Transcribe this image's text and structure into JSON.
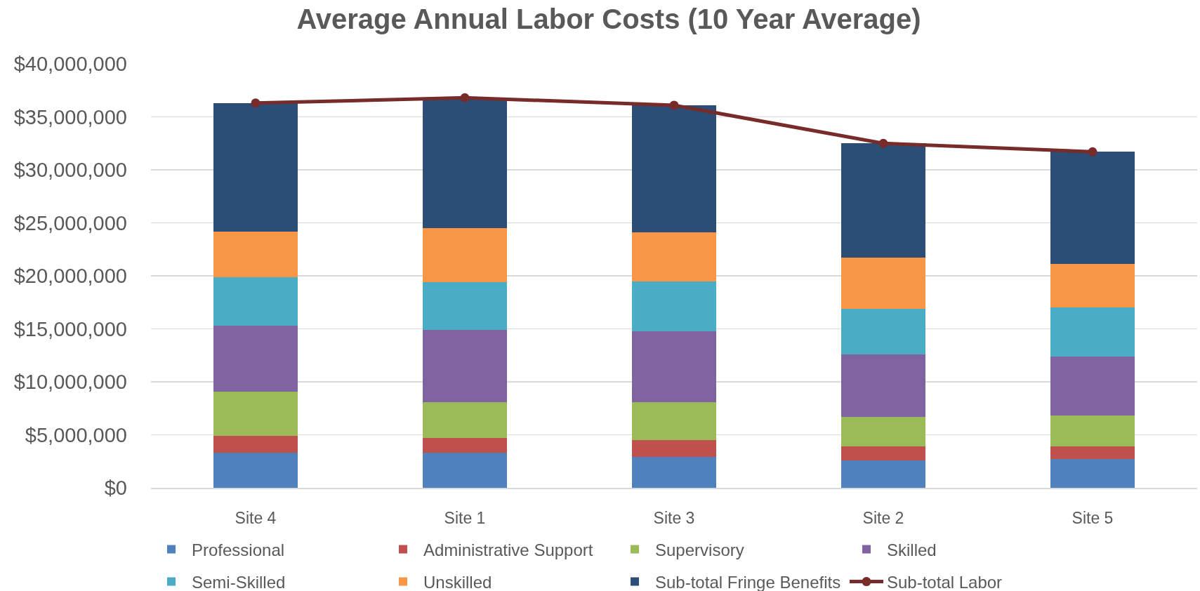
{
  "chart_data": {
    "type": "bar",
    "title": "Average Annual Labor Costs (10 Year Average)",
    "categories": [
      "Site 4",
      "Site 1",
      "Site 3",
      "Site 2",
      "Site 5"
    ],
    "stacked": true,
    "series": [
      {
        "name": "Professional",
        "color": "#4f81bd",
        "values": [
          3300000,
          3300000,
          2900000,
          2600000,
          2700000
        ]
      },
      {
        "name": "Administrative Support",
        "color": "#c0504d",
        "values": [
          1600000,
          1400000,
          1600000,
          1300000,
          1200000
        ]
      },
      {
        "name": "Supervisory",
        "color": "#9bbb59",
        "values": [
          4200000,
          3400000,
          3600000,
          2800000,
          2900000
        ]
      },
      {
        "name": "Skilled",
        "color": "#8064a2",
        "values": [
          6200000,
          6800000,
          6700000,
          5900000,
          5600000
        ]
      },
      {
        "name": "Semi-Skilled",
        "color": "#4bacc6",
        "values": [
          4600000,
          4500000,
          4700000,
          4300000,
          4600000
        ]
      },
      {
        "name": "Unskilled",
        "color": "#f79646",
        "values": [
          4300000,
          5100000,
          4600000,
          4800000,
          4100000
        ]
      },
      {
        "name": "Sub-total Fringe Benefits",
        "color": "#2c4d75",
        "values": [
          12100000,
          12300000,
          12000000,
          10800000,
          10600000
        ]
      },
      {
        "name": "Sub-total Labor",
        "type": "line",
        "color": "#772c2a",
        "values": [
          36300000,
          36800000,
          36100000,
          32500000,
          31700000
        ]
      }
    ],
    "ylim": [
      0,
      40000000
    ],
    "yticks": [
      {
        "value": 0,
        "label": "$0"
      },
      {
        "value": 5000000,
        "label": "$5,000,000"
      },
      {
        "value": 10000000,
        "label": "$10,000,000"
      },
      {
        "value": 15000000,
        "label": "$15,000,000"
      },
      {
        "value": 20000000,
        "label": "$20,000,000"
      },
      {
        "value": 25000000,
        "label": "$25,000,000"
      },
      {
        "value": 30000000,
        "label": "$30,000,000"
      },
      {
        "value": 35000000,
        "label": "$35,000,000"
      },
      {
        "value": 40000000,
        "label": "$40,000,000"
      }
    ],
    "grid": "y",
    "legend": "bottom",
    "marker": "circle",
    "line_style": "solid"
  }
}
